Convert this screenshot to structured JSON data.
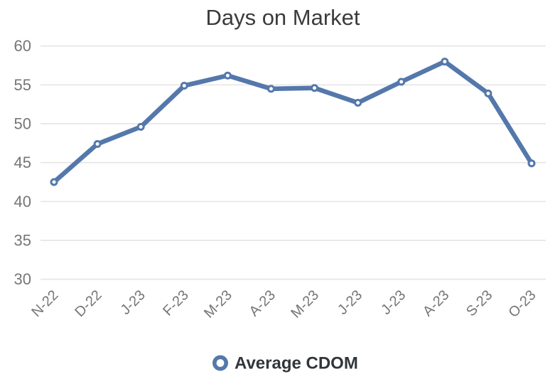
{
  "chart_data": {
    "type": "line",
    "title": "Days on Market",
    "categories": [
      "N-22",
      "D-22",
      "J-23",
      "F-23",
      "M-23",
      "A-23",
      "M-23",
      "J-23",
      "J-23",
      "A-23",
      "S-23",
      "O-23"
    ],
    "series": [
      {
        "name": "Average CDOM",
        "values": [
          42.5,
          47.4,
          49.6,
          54.9,
          56.2,
          54.5,
          54.6,
          52.7,
          55.4,
          58.0,
          53.9,
          44.9
        ]
      }
    ],
    "yticks": [
      30,
      35,
      40,
      45,
      50,
      55,
      60
    ],
    "ylim": [
      30,
      60
    ],
    "xlabel": "",
    "ylabel": "",
    "grid": true,
    "legend_position": "bottom",
    "x_label_rotation_deg": -45,
    "colors": {
      "line": "#5478ab",
      "marker_fill": "#ffffff",
      "marker_stroke": "#5478ab",
      "gridline": "#e4e4e4",
      "title_text": "#3b3b3b",
      "axis_label_text": "#767676",
      "legend_text": "#32363b",
      "background": "#ffffff"
    }
  }
}
